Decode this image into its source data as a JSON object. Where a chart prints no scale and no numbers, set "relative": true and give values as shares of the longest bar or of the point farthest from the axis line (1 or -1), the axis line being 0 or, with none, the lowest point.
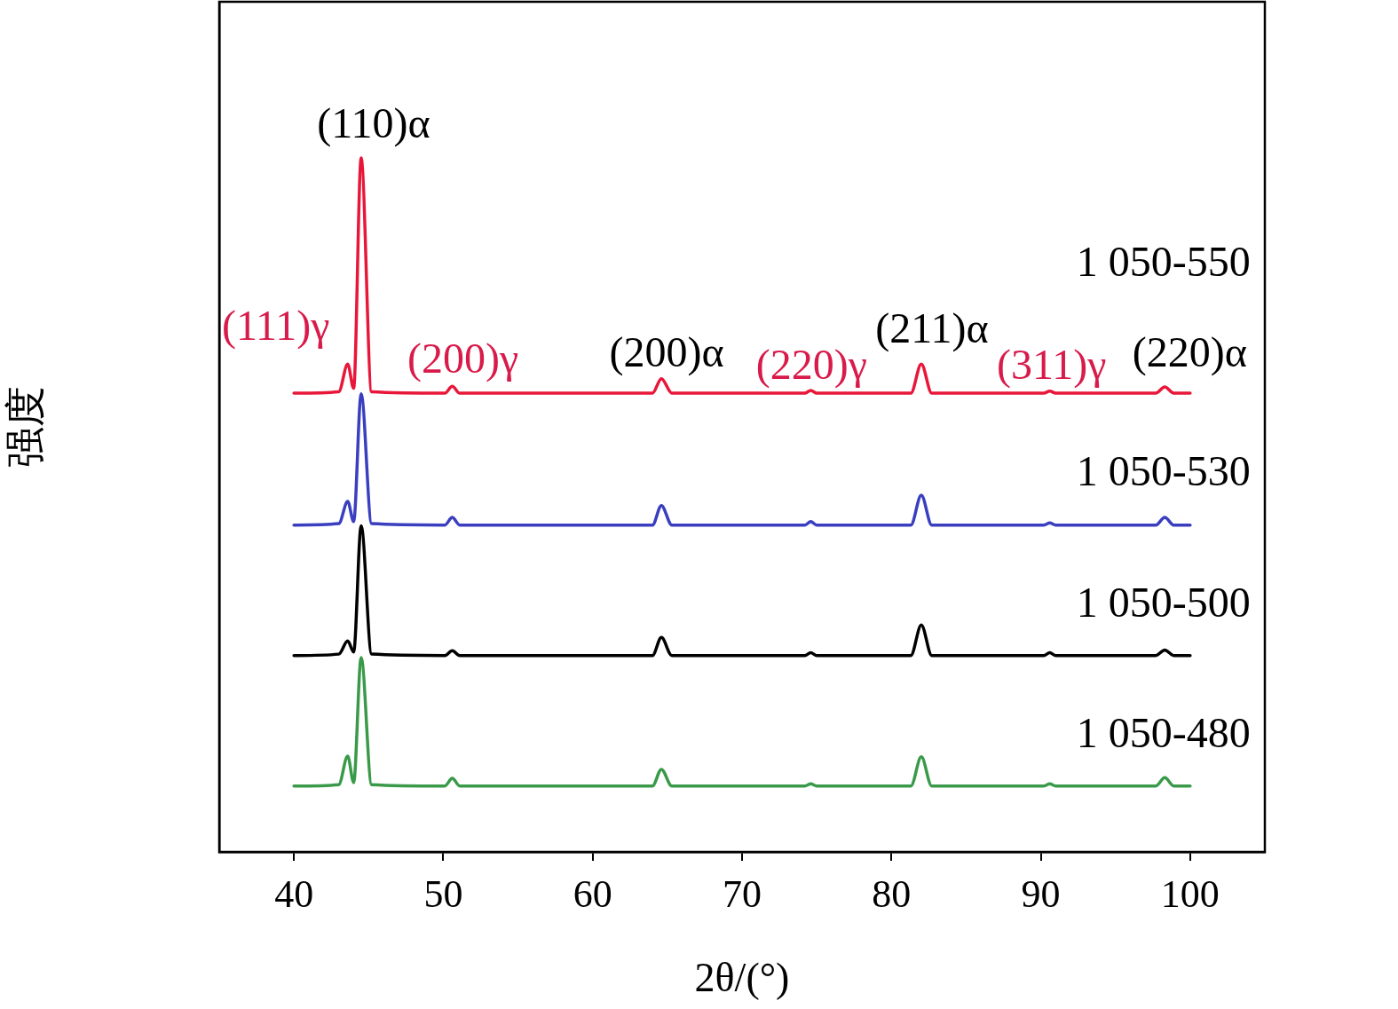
{
  "chart_data": {
    "type": "line",
    "relative": true,
    "xlabel": "2θ/(°)",
    "ylabel": "强度",
    "xlim": [
      35,
      105
    ],
    "xticks": [
      40,
      50,
      60,
      70,
      80,
      90,
      100
    ],
    "grid": false,
    "legend": false,
    "marker": "none",
    "line_style": "solid",
    "x": [
      40,
      43.0,
      43.6,
      44.0,
      44.5,
      45.2,
      50.1,
      50.6,
      51.1,
      64.0,
      64.6,
      65.3,
      74.2,
      74.6,
      75.0,
      81.3,
      82.0,
      82.7,
      90.2,
      90.6,
      91.0,
      97.7,
      98.3,
      98.9,
      100
    ],
    "series": [
      {
        "name": "1 050-550",
        "color": "#e8173a",
        "values": [
          0.661,
          0.663,
          0.703,
          0.668,
          1.0,
          0.663,
          0.661,
          0.671,
          0.661,
          0.661,
          0.682,
          0.661,
          0.661,
          0.665,
          0.661,
          0.661,
          0.703,
          0.661,
          0.661,
          0.664,
          0.661,
          0.661,
          0.67,
          0.661,
          0.661
        ]
      },
      {
        "name": "1 050-530",
        "color": "#3a3fc0",
        "values": [
          0.471,
          0.473,
          0.505,
          0.476,
          0.66,
          0.473,
          0.471,
          0.482,
          0.471,
          0.471,
          0.499,
          0.471,
          0.471,
          0.476,
          0.471,
          0.471,
          0.514,
          0.471,
          0.471,
          0.474,
          0.471,
          0.471,
          0.482,
          0.471,
          0.471
        ]
      },
      {
        "name": "1 050-500",
        "color": "#000000",
        "values": [
          0.283,
          0.285,
          0.304,
          0.288,
          0.47,
          0.285,
          0.283,
          0.29,
          0.283,
          0.283,
          0.309,
          0.283,
          0.283,
          0.287,
          0.283,
          0.283,
          0.327,
          0.283,
          0.283,
          0.287,
          0.283,
          0.283,
          0.291,
          0.283,
          0.283
        ]
      },
      {
        "name": "1 050-480",
        "color": "#3a9a4a",
        "values": [
          0.095,
          0.097,
          0.138,
          0.1,
          0.28,
          0.097,
          0.095,
          0.106,
          0.095,
          0.095,
          0.119,
          0.095,
          0.095,
          0.098,
          0.095,
          0.095,
          0.137,
          0.095,
          0.095,
          0.098,
          0.095,
          0.095,
          0.107,
          0.095,
          0.095
        ]
      }
    ],
    "annotations": [
      {
        "text": "(110)α",
        "x": 44.5,
        "y": 1.0
      },
      {
        "text": "(111)γ",
        "x": 43.6,
        "y": 0.703
      },
      {
        "text": "(200)γ",
        "x": 50.6,
        "y": 0.671
      },
      {
        "text": "(200)α",
        "x": 64.6,
        "y": 0.682
      },
      {
        "text": "(220)γ",
        "x": 74.6,
        "y": 0.665
      },
      {
        "text": "(211)α",
        "x": 82.0,
        "y": 0.703
      },
      {
        "text": "(311)γ",
        "x": 90.6,
        "y": 0.664
      },
      {
        "text": "(220)α",
        "x": 98.3,
        "y": 0.67
      }
    ]
  }
}
